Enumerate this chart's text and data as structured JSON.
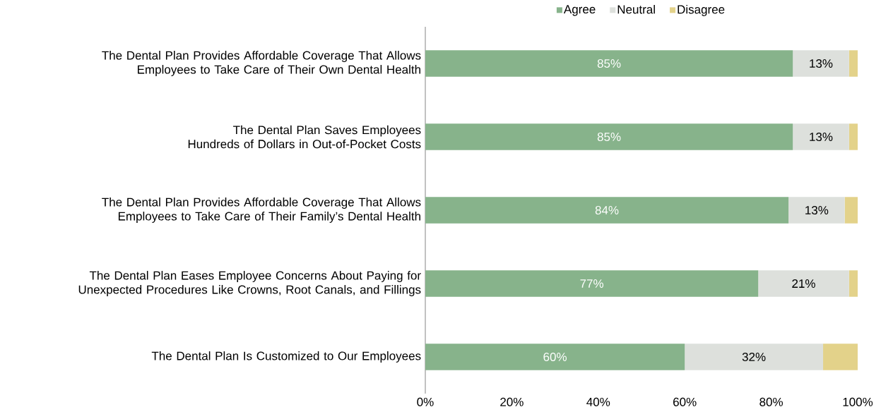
{
  "chart_data": {
    "type": "bar",
    "orientation": "horizontal",
    "stacked": true,
    "legend": "top",
    "categories": [
      "The Dental Plan Provides Affordable Coverage That Allows Employees to Take Care of Their Own Dental Health",
      "The Dental Plan Saves Employees Hundreds of Dollars in Out-of-Pocket Costs",
      "The Dental Plan Provides Affordable Coverage That Allows Employees to Take Care of Their Family’s Dental Health",
      "The Dental Plan Eases Employee Concerns About Paying for Unexpected Procedures Like Crowns, Root Canals, and Fillings",
      "The Dental Plan Is Customized to Our Employees"
    ],
    "series": [
      {
        "name": "Agree",
        "color": "#87b38b",
        "values": [
          85,
          85,
          84,
          77,
          60
        ],
        "value_labels": [
          "85%",
          "85%",
          "84%",
          "77%",
          "60%"
        ]
      },
      {
        "name": "Neutral",
        "color": "#dde0dc",
        "values": [
          13,
          13,
          13,
          21,
          32
        ],
        "value_labels": [
          "13%",
          "13%",
          "13%",
          "21%",
          "32%"
        ]
      },
      {
        "name": "Disagree",
        "color": "#e3d28a",
        "values": [
          2,
          2,
          3,
          2,
          8
        ],
        "value_labels": [
          null,
          null,
          null,
          null,
          null
        ]
      }
    ],
    "xlim": [
      0,
      100
    ],
    "xticks": [
      {
        "value": 0,
        "label": "0%"
      },
      {
        "value": 20,
        "label": "20%"
      },
      {
        "value": 40,
        "label": "40%"
      },
      {
        "value": 60,
        "label": "60%"
      },
      {
        "value": 80,
        "label": "80%"
      },
      {
        "value": 100,
        "label": "100%"
      }
    ]
  }
}
